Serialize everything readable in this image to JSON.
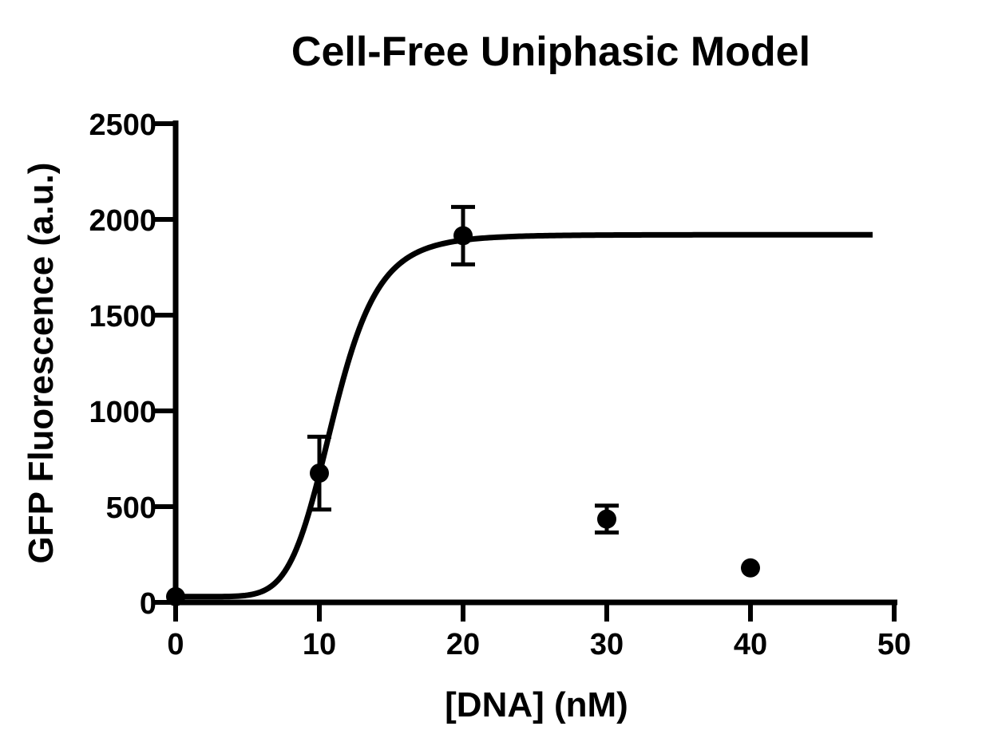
{
  "chart_data": {
    "type": "scatter",
    "title": "Cell-Free Uniphasic Model",
    "xlabel": "[DNA] (nM)",
    "ylabel": "GFP Fluorescence (a.u.)",
    "xlim": [
      0,
      50
    ],
    "ylim": [
      0,
      2500
    ],
    "x_ticks": [
      "0",
      "10",
      "20",
      "30",
      "40",
      "50"
    ],
    "y_ticks": [
      "0",
      "500",
      "1000",
      "1500",
      "2000",
      "2500"
    ],
    "grid": false,
    "legend": "none",
    "points": [
      {
        "x": 0,
        "y": 30,
        "err": 0
      },
      {
        "x": 10,
        "y": 675,
        "err": 190
      },
      {
        "x": 20,
        "y": 1915,
        "err": 150
      },
      {
        "x": 30,
        "y": 435,
        "err": 70
      },
      {
        "x": 40,
        "y": 180,
        "err": 0
      }
    ],
    "fit": {
      "model": "hill",
      "bottom": 30,
      "top": 1920,
      "ec50": 11,
      "hill": 7,
      "x_range": [
        0,
        48.5
      ]
    },
    "colors": {
      "ink": "#000000",
      "background": "#ffffff"
    }
  }
}
